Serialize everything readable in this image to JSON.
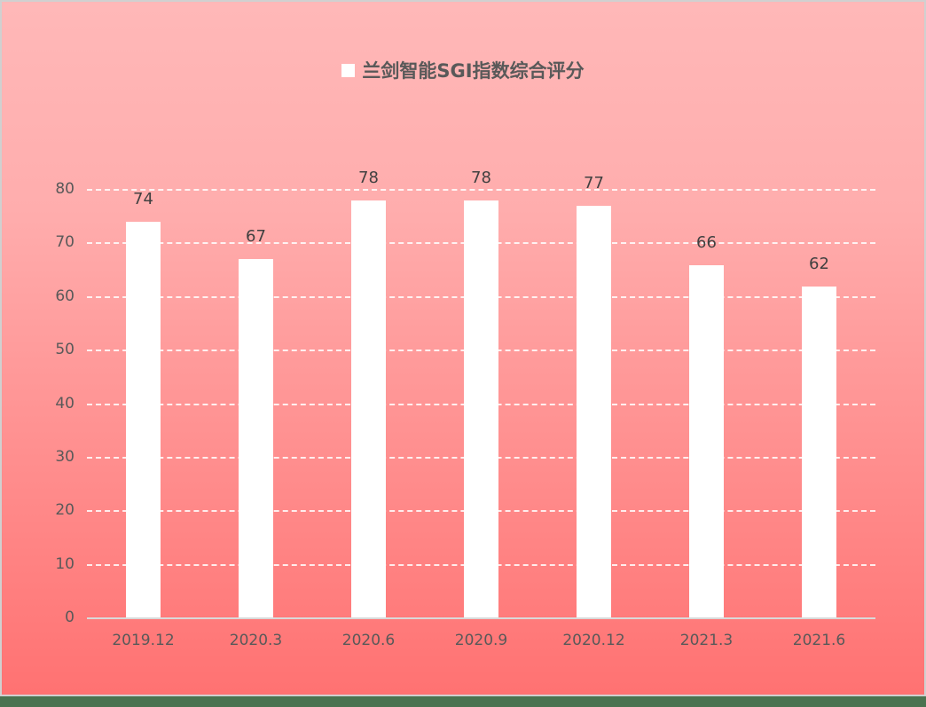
{
  "chart_data": {
    "type": "bar",
    "title": "",
    "categories": [
      "2019.12",
      "2020.3",
      "2020.6",
      "2020.9",
      "2020.12",
      "2021.3",
      "2021.6"
    ],
    "series": [
      {
        "name": "兰剑智能SGI指数综合评分",
        "values": [
          74,
          67,
          78,
          78,
          77,
          66,
          62
        ],
        "color": "#ffffff"
      }
    ],
    "values": [
      74,
      67,
      78,
      78,
      77,
      66,
      62
    ],
    "xlabel": "",
    "ylabel": "",
    "ylim": [
      0,
      80
    ],
    "yticks": [
      "0",
      "10",
      "20",
      "30",
      "40",
      "50",
      "60",
      "70",
      "80"
    ],
    "grid": true,
    "legend_position": "top",
    "data_labels": [
      "74",
      "67",
      "78",
      "78",
      "77",
      "66",
      "62"
    ]
  },
  "legend": {
    "label": "兰剑智能SGI指数综合评分"
  },
  "colors": {
    "background_top": "#ffb8b8",
    "background_bottom": "#ff7272",
    "bar": "#ffffff",
    "gridline": "#ffffff",
    "text": "#595959"
  }
}
